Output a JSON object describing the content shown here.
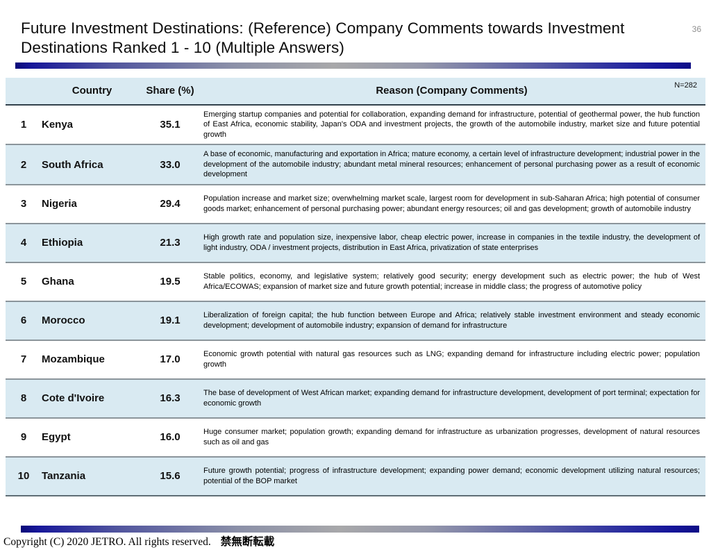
{
  "page_number": "36",
  "title": "Future Investment Destinations: (Reference) Company Comments towards Investment Destinations Ranked 1 - 10 (Multiple Answers)",
  "table": {
    "n_label": "N=282",
    "headers": {
      "country": "Country",
      "share": "Share (%)",
      "reason": "Reason (Company Comments)"
    },
    "rows": [
      {
        "rank": "1",
        "country": "Kenya",
        "share": "35.1",
        "reason": "Emerging startup companies and potential for collaboration, expanding demand for infrastructure, potential of geothermal power, the hub function of East Africa, economic stability, Japan's ODA and investment projects, the growth of the automobile industry, market size and future potential growth"
      },
      {
        "rank": "2",
        "country": "South Africa",
        "share": "33.0",
        "reason": "A base of economic, manufacturing and exportation in Africa; mature economy, a certain level of infrastructure development; industrial power in the development of the automobile industry; abundant metal mineral resources; enhancement of personal purchasing power as a result of economic development"
      },
      {
        "rank": "3",
        "country": "Nigeria",
        "share": "29.4",
        "reason": "Population increase and market size; overwhelming market scale, largest room for development in sub-Saharan Africa; high potential of consumer goods market; enhancement of personal purchasing power; abundant energy resources; oil and gas development; growth of automobile industry"
      },
      {
        "rank": "4",
        "country": "Ethiopia",
        "share": "21.3",
        "reason": "High growth rate and population size, inexpensive labor, cheap electric power, increase in companies in the textile industry, the development of light industry, ODA / investment projects, distribution in East Africa, privatization of state enterprises"
      },
      {
        "rank": "5",
        "country": "Ghana",
        "share": "19.5",
        "reason": "Stable politics, economy, and legislative system; relatively good security; energy development such as electric power; the hub of West Africa/ECOWAS; expansion of market size and future growth potential; increase in middle class; the progress of automotive policy"
      },
      {
        "rank": "6",
        "country": "Morocco",
        "share": "19.1",
        "reason": "Liberalization of foreign capital; the hub function between Europe and Africa; relatively stable investment environment and steady economic development; development of automobile industry; expansion of demand for infrastructure"
      },
      {
        "rank": "7",
        "country": "Mozambique",
        "share": "17.0",
        "reason": "Economic growth potential with natural gas resources such as LNG; expanding demand for infrastructure including electric power; population growth"
      },
      {
        "rank": "8",
        "country": "Cote d'Ivoire",
        "share": "16.3",
        "reason": "The base of development of West African market; expanding demand for infrastructure development, development of port terminal; expectation for economic growth"
      },
      {
        "rank": "9",
        "country": "Egypt",
        "share": "16.0",
        "reason": "Huge consumer market; population growth; expanding demand for infrastructure as urbanization progresses, development of natural resources such as oil and gas"
      },
      {
        "rank": "10",
        "country": "Tanzania",
        "share": "15.6",
        "reason": "Future growth potential; progress of infrastructure development; expanding power demand; economic development utilizing natural resources; potential of the BOP market"
      }
    ]
  },
  "footer": {
    "copyright": "Copyright (C) 2020 JETRO.  All rights reserved.",
    "copyright_jp": "禁無断転載"
  },
  "colors": {
    "stripe_blue": "#d9eaf2",
    "bar_navy": "#15159a",
    "bar_gray": "#a8a8aa",
    "row_separator": "#8b959b",
    "header_border": "#33424c"
  }
}
